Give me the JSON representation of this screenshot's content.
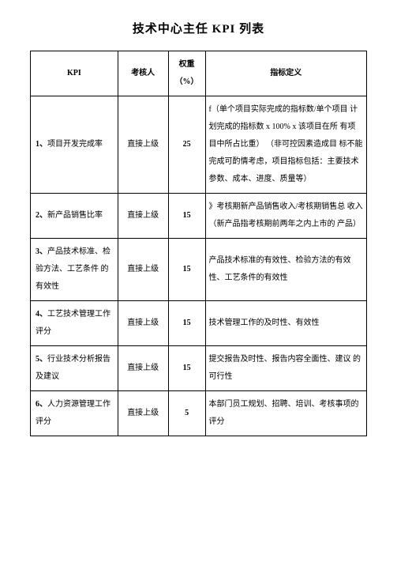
{
  "title": "技术中心主任 KPI 列表",
  "headers": {
    "kpi": "KPI",
    "reviewer": "考核人",
    "weight": "权重（%）",
    "definition": "指标定义"
  },
  "rows": [
    {
      "num": "1、",
      "kpi": "项目开发完成率",
      "reviewer": "直接上级",
      "weight": "25",
      "definition": "f（单个项目实际完成的指标数/单个项目 计划完成的指标数 x 100% x 该项目在所 有项目中所占比重） （非可控因素造成目 标不能完成可酌情考虑，项目指标包括：主要技术参数、成本、进度、质量等）"
    },
    {
      "num": "2、",
      "kpi": "新产品销售比率",
      "reviewer": "直接上级",
      "weight": "15",
      "definition": "》考核期新产品销售收入/考核期销售总 收入（新产品指考核期前两年之内上市的 产品）"
    },
    {
      "num": "3、",
      "kpi": "产品技术标准、检 验方法、工艺条件 的有效性",
      "reviewer": "直接上级",
      "weight": "15",
      "definition": "产品技术标准的有效性、检验方法的有效性、工艺条件的有效性"
    },
    {
      "num": "4、",
      "kpi": "工艺技术管理工作评分",
      "reviewer": "直接上级",
      "weight": "15",
      "definition": "技术管理工作的及时性、有效性"
    },
    {
      "num": "5、",
      "kpi": "行业技术分析报告及建议",
      "reviewer": "直接上级",
      "weight": "15",
      "definition": "提交报告及时性、报告内容全面性、建议 的可行性"
    },
    {
      "num": "6、",
      "kpi": "人力资源管理工作评分",
      "reviewer": "直接上级",
      "weight": "5",
      "definition": "本部门员工规划、招聘、培训、考核事项的评分"
    }
  ]
}
